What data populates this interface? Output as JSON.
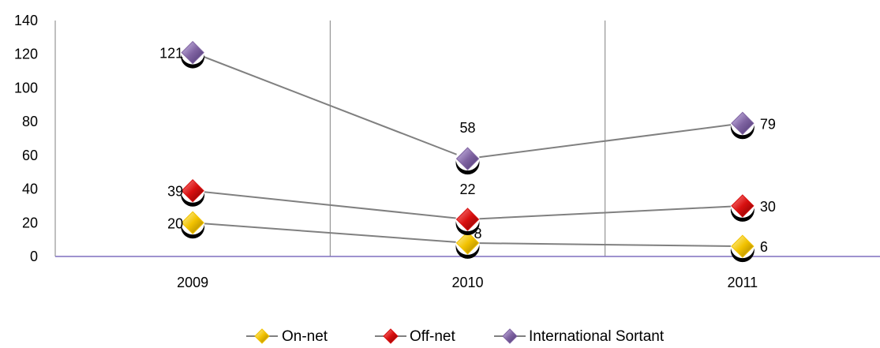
{
  "chart_data": {
    "type": "line",
    "title": "",
    "xlabel": "",
    "ylabel": "",
    "categories": [
      "2009",
      "2010",
      "2011"
    ],
    "ylim": [
      0,
      140
    ],
    "yticks": [
      0,
      20,
      40,
      60,
      80,
      100,
      120,
      140
    ],
    "ytick_labels": [
      "0",
      "20",
      "40",
      "60",
      "80",
      "100",
      "120",
      "140"
    ],
    "grid": "vertical",
    "legend_position": "bottom",
    "series": [
      {
        "name": "On-net",
        "values": [
          20,
          8,
          6
        ],
        "labels": [
          "20",
          "8",
          "6"
        ],
        "color": "#f2c200"
      },
      {
        "name": "Off-net",
        "values": [
          39,
          22,
          30
        ],
        "labels": [
          "39",
          "22",
          "30"
        ],
        "color": "#d81010"
      },
      {
        "name": "International Sortant",
        "values": [
          121,
          58,
          79
        ],
        "labels": [
          "121",
          "58",
          "79"
        ],
        "color": "#8064a2"
      }
    ],
    "colors": {
      "line": "#808080",
      "axis": "#7f6fbf",
      "grid": "#808080"
    }
  }
}
